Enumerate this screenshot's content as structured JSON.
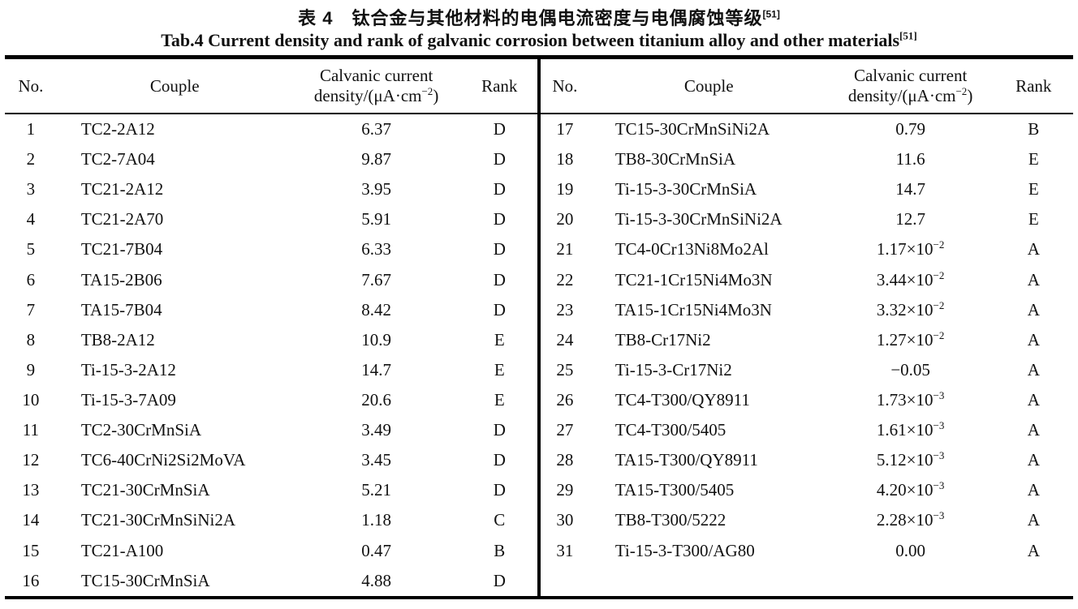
{
  "page": {
    "background": "#ffffff",
    "text_color": "#111111",
    "rule_color": "#000000"
  },
  "title": {
    "zh": "表 4　钛合金与其他材料的电偶电流密度与电偶腐蚀等级",
    "zh_ref": "[51]",
    "en": "Tab.4 Current density and rank of galvanic corrosion between titanium alloy and other materials",
    "en_ref": "[51]"
  },
  "table": {
    "headers": {
      "no": "No.",
      "couple": "Couple",
      "density_line1": "Calvanic current",
      "density_line2": "density/(μA·cm^{−2})",
      "rank": "Rank"
    },
    "left_rows": [
      {
        "no": "1",
        "couple": "TC2-2A12",
        "density": "6.37",
        "rank": "D"
      },
      {
        "no": "2",
        "couple": "TC2-7A04",
        "density": "9.87",
        "rank": "D"
      },
      {
        "no": "3",
        "couple": "TC21-2A12",
        "density": "3.95",
        "rank": "D"
      },
      {
        "no": "4",
        "couple": "TC21-2A70",
        "density": "5.91",
        "rank": "D"
      },
      {
        "no": "5",
        "couple": "TC21-7B04",
        "density": "6.33",
        "rank": "D"
      },
      {
        "no": "6",
        "couple": "TA15-2B06",
        "density": "7.67",
        "rank": "D"
      },
      {
        "no": "7",
        "couple": "TA15-7B04",
        "density": "8.42",
        "rank": "D"
      },
      {
        "no": "8",
        "couple": "TB8-2A12",
        "density": "10.9",
        "rank": "E"
      },
      {
        "no": "9",
        "couple": "Ti-15-3-2A12",
        "density": "14.7",
        "rank": "E"
      },
      {
        "no": "10",
        "couple": "Ti-15-3-7A09",
        "density": "20.6",
        "rank": "E"
      },
      {
        "no": "11",
        "couple": "TC2-30CrMnSiA",
        "density": "3.49",
        "rank": "D"
      },
      {
        "no": "12",
        "couple": "TC6-40CrNi2Si2MoVA",
        "density": "3.45",
        "rank": "D"
      },
      {
        "no": "13",
        "couple": "TC21-30CrMnSiA",
        "density": "5.21",
        "rank": "D"
      },
      {
        "no": "14",
        "couple": "TC21-30CrMnSiNi2A",
        "density": "1.18",
        "rank": "C"
      },
      {
        "no": "15",
        "couple": "TC21-A100",
        "density": "0.47",
        "rank": "B"
      },
      {
        "no": "16",
        "couple": "TC15-30CrMnSiA",
        "density": "4.88",
        "rank": "D"
      }
    ],
    "right_rows": [
      {
        "no": "17",
        "couple": "TC15-30CrMnSiNi2A",
        "density": "0.79",
        "rank": "B"
      },
      {
        "no": "18",
        "couple": "TB8-30CrMnSiA",
        "density": "11.6",
        "rank": "E"
      },
      {
        "no": "19",
        "couple": "Ti-15-3-30CrMnSiA",
        "density": "14.7",
        "rank": "E"
      },
      {
        "no": "20",
        "couple": "Ti-15-3-30CrMnSiNi2A",
        "density": "12.7",
        "rank": "E"
      },
      {
        "no": "21",
        "couple": "TC4-0Cr13Ni8Mo2Al",
        "density": "1.17×10^{−2}",
        "rank": "A"
      },
      {
        "no": "22",
        "couple": "TC21-1Cr15Ni4Mo3N",
        "density": "3.44×10^{−2}",
        "rank": "A"
      },
      {
        "no": "23",
        "couple": "TA15-1Cr15Ni4Mo3N",
        "density": "3.32×10^{−2}",
        "rank": "A"
      },
      {
        "no": "24",
        "couple": "TB8-Cr17Ni2",
        "density": "1.27×10^{−2}",
        "rank": "A"
      },
      {
        "no": "25",
        "couple": "Ti-15-3-Cr17Ni2",
        "density": "−0.05",
        "rank": "A"
      },
      {
        "no": "26",
        "couple": "TC4-T300/QY8911",
        "density": "1.73×10^{−3}",
        "rank": "A"
      },
      {
        "no": "27",
        "couple": "TC4-T300/5405",
        "density": "1.61×10^{−3}",
        "rank": "A"
      },
      {
        "no": "28",
        "couple": "TA15-T300/QY8911",
        "density": "5.12×10^{−3}",
        "rank": "A"
      },
      {
        "no": "29",
        "couple": "TA15-T300/5405",
        "density": "4.20×10^{−3}",
        "rank": "A"
      },
      {
        "no": "30",
        "couple": "TB8-T300/5222",
        "density": "2.28×10^{−3}",
        "rank": "A"
      },
      {
        "no": "31",
        "couple": "Ti-15-3-T300/AG80",
        "density": "0.00",
        "rank": "A"
      }
    ]
  }
}
